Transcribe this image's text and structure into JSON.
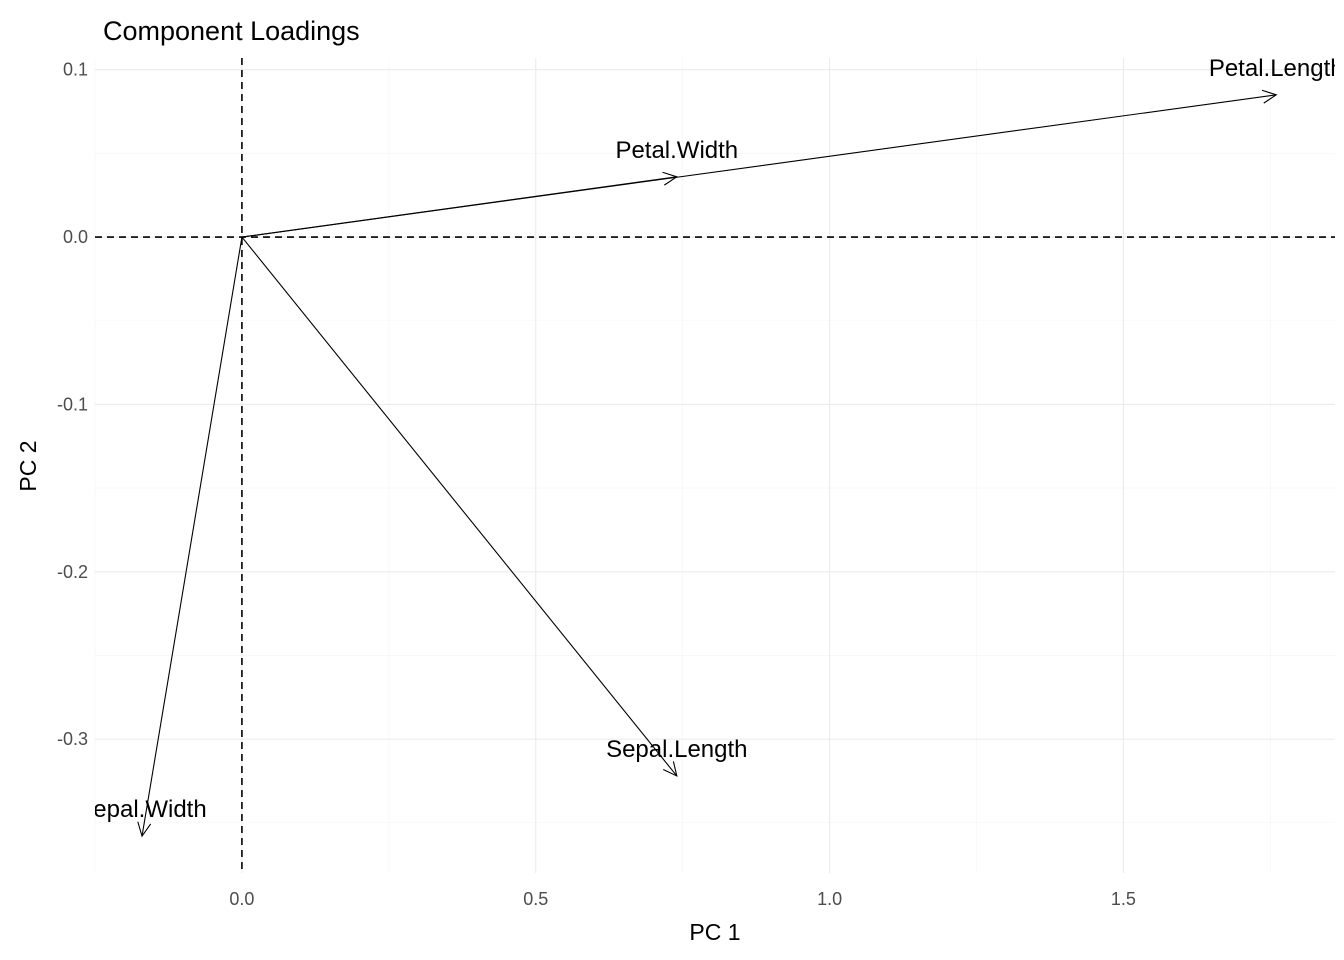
{
  "chart_data": {
    "type": "biplot-loadings",
    "title": "Component Loadings",
    "xlabel": "PC 1",
    "ylabel": "PC 2",
    "xlim": [
      -0.25,
      1.86
    ],
    "ylim": [
      -0.38,
      0.107
    ],
    "x_ticks": [
      0.0,
      0.5,
      1.0,
      1.5
    ],
    "x_tick_labels": [
      "0.0",
      "0.5",
      "1.0",
      "1.5"
    ],
    "y_ticks": [
      0.1,
      0.0,
      -0.1,
      -0.2,
      -0.3
    ],
    "y_tick_labels": [
      "0.1",
      "0.0",
      "-0.1",
      "-0.2",
      "-0.3"
    ],
    "grid": true,
    "reference_lines": {
      "x": 0,
      "y": 0,
      "style": "dashed"
    },
    "vectors": [
      {
        "name": "Petal.Length",
        "label": "Petal.Length",
        "x": 1.76,
        "y": 0.085
      },
      {
        "name": "Petal.Width",
        "label": "Petal.Width",
        "x": 0.74,
        "y": 0.036
      },
      {
        "name": "Sepal.Length",
        "label": "Sepal.Length",
        "x": 0.74,
        "y": -0.322
      },
      {
        "name": "Sepal.Width",
        "label": "Sepal.Width",
        "x": -0.17,
        "y": -0.358
      }
    ]
  }
}
